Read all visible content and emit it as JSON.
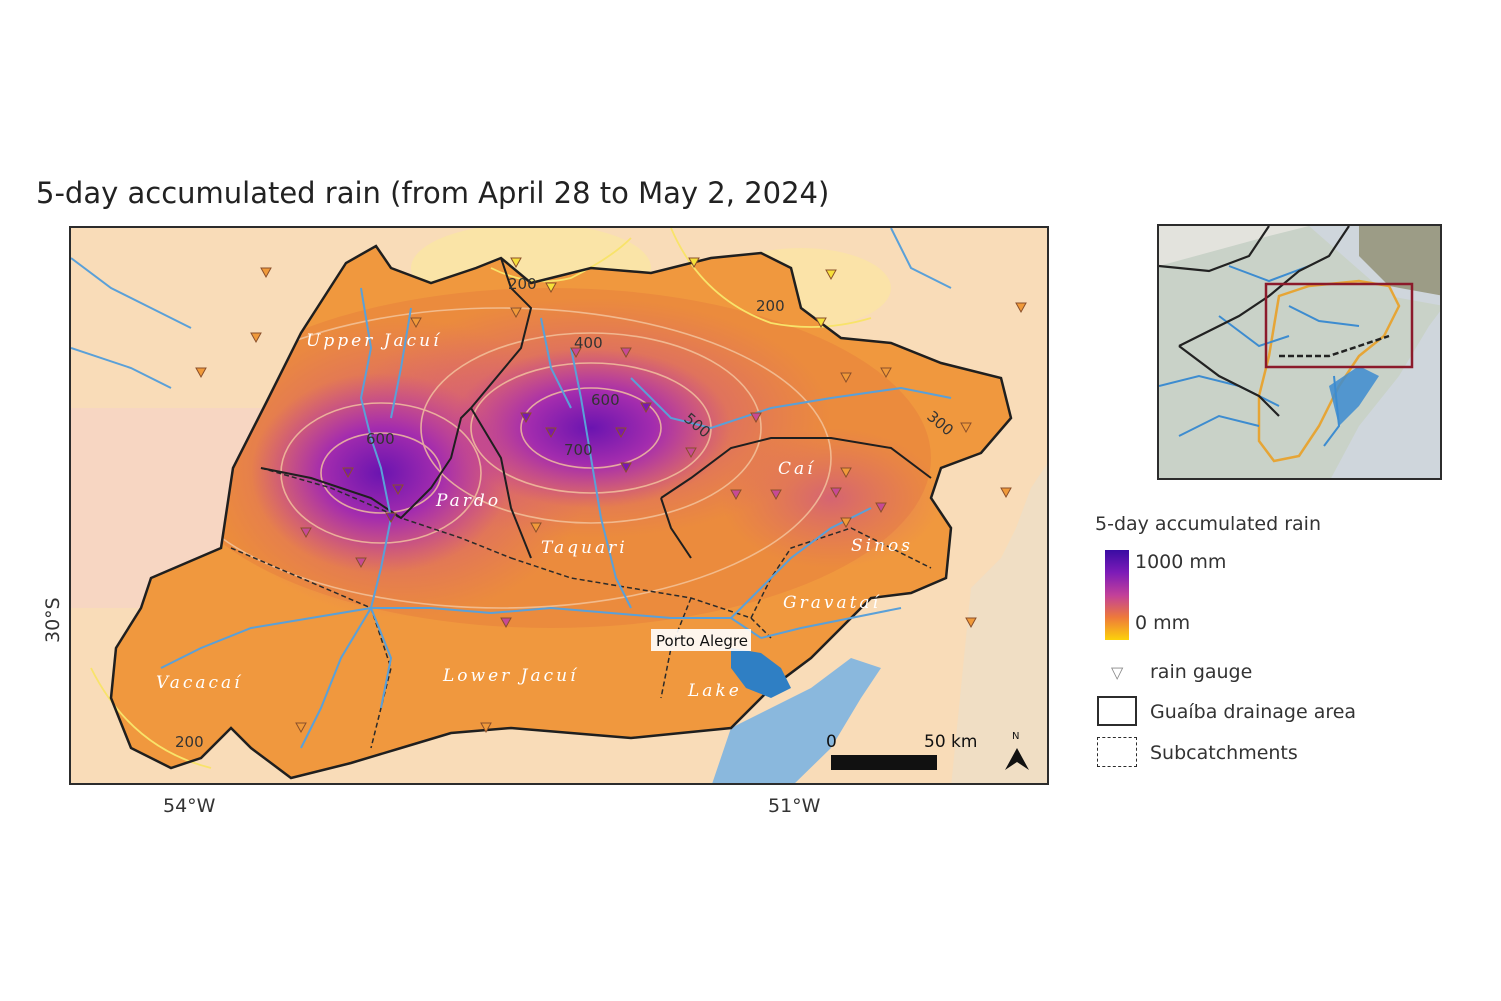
{
  "title": "5-day accumulated rain (from April 28 to May 2, 2024)",
  "axes": {
    "lat_label": "30°S",
    "lon_labels": [
      "54°W",
      "51°W"
    ]
  },
  "subcatchments": [
    "Upper Jacuí",
    "Pardo",
    "Taquari",
    "Caí",
    "Sinos",
    "Gravataí",
    "Vacacaí",
    "Lower Jacuí",
    "Lake"
  ],
  "city_label": "Porto Alegre",
  "contour_labels": [
    "200",
    "200",
    "200",
    "300",
    "400",
    "500",
    "600",
    "600",
    "700"
  ],
  "scale_bar": {
    "start": "0",
    "end": "50 km"
  },
  "north_arrow": "N",
  "legend": {
    "title": "5-day accumulated rain",
    "ramp_max": "1000 mm",
    "ramp_min": "0 mm",
    "gauge_label": "rain gauge",
    "drainage_label": "Guaíba drainage area",
    "subcatch_label": "Subcatchments"
  },
  "colors": {
    "ramp_high": "#3a0ca3",
    "ramp_mid": "#c2409a",
    "ramp_low": "#fcd20a",
    "river": "#5aa0d8",
    "lake": "#8ab8dd",
    "boundary": "#2a2a2a"
  }
}
